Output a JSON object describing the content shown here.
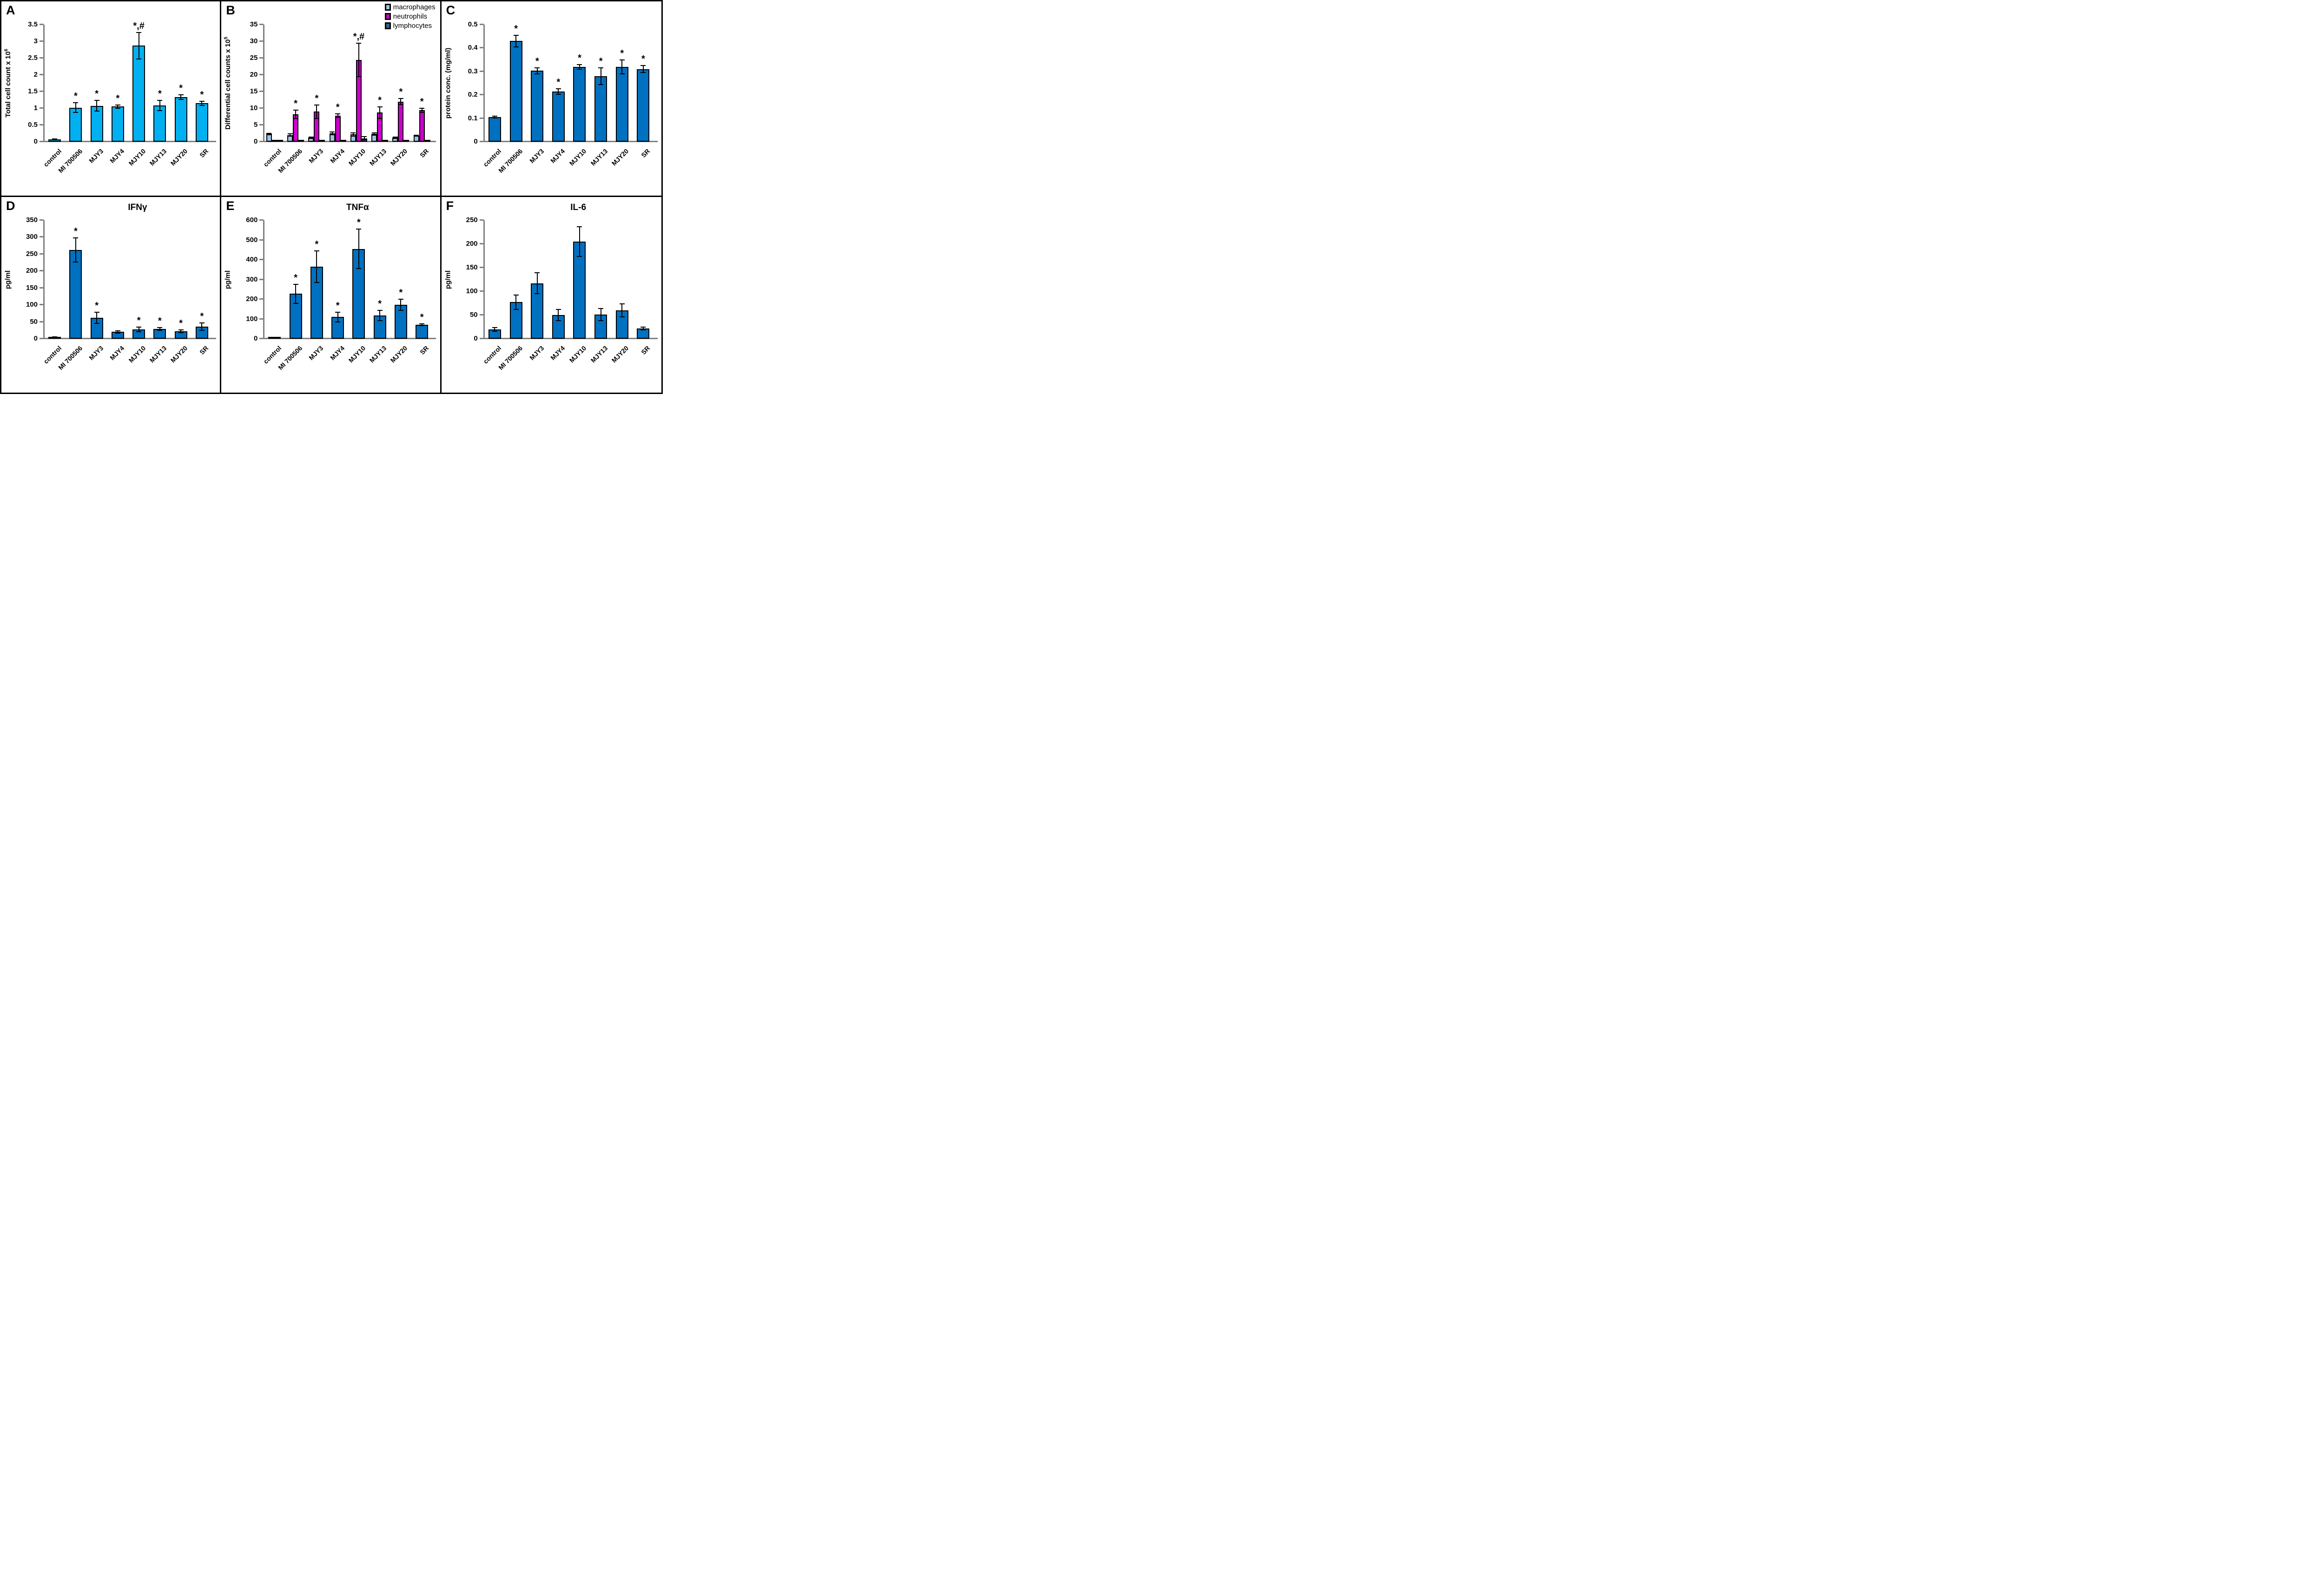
{
  "figure": {
    "background": "#FFFFFF",
    "border_color": "#000000",
    "axis_color": "#808080",
    "error_bar_color": "#000000"
  },
  "chart_data": [
    {
      "type": "bar",
      "panel_label": "A",
      "title": "",
      "ylabel": "Total cell count x 10",
      "ylabel_sup": "6",
      "ylim": [
        0,
        3.5
      ],
      "ytick_step": 0.5,
      "grid": false,
      "categories": [
        "control",
        "MI 700506",
        "MJY3",
        "MJY4",
        "MJY10",
        "MJY13",
        "MJY20",
        "SR"
      ],
      "series": [
        {
          "name": "total cells",
          "color": "#00B0F0",
          "values": [
            0.07,
            1.02,
            1.07,
            1.05,
            2.87,
            1.08,
            1.33,
            1.15
          ],
          "errors": [
            0.015,
            0.15,
            0.16,
            0.05,
            0.4,
            0.15,
            0.07,
            0.06
          ],
          "annotations": [
            "",
            "*",
            "*",
            "*",
            "*,#",
            "*",
            "*",
            "*"
          ]
        }
      ]
    },
    {
      "type": "bar",
      "panel_label": "B",
      "title": "",
      "ylabel": "Differential cell counts x 10",
      "ylabel_sup": "5",
      "ylim": [
        0,
        35
      ],
      "ytick_step": 5,
      "grid": false,
      "categories": [
        "control",
        "MI 700506",
        "MJY3",
        "MJY4",
        "MJY10",
        "MJY13",
        "MJY20",
        "SR"
      ],
      "legend": {
        "position": "top-right",
        "items": [
          {
            "label": "macrophages",
            "color": "#9DC3E6"
          },
          {
            "label": "neutrophils",
            "color": "#CC00CC"
          },
          {
            "label": "lymphocytes",
            "color": "#365F91"
          }
        ]
      },
      "series": [
        {
          "name": "macrophages",
          "color": "#9DC3E6",
          "values": [
            2.3,
            2.0,
            1.2,
            2.5,
            2.2,
            2.3,
            1.2,
            1.8
          ],
          "errors": [
            0.25,
            0.3,
            0.2,
            0.45,
            0.5,
            0.3,
            0.2,
            0.2
          ],
          "annotations": [
            "",
            "",
            "",
            "",
            "",
            "",
            "",
            ""
          ]
        },
        {
          "name": "neutrophils",
          "color": "#CC00CC",
          "values": [
            0.05,
            8.2,
            9.0,
            7.8,
            24.5,
            8.7,
            12.0,
            9.4
          ],
          "errors": [
            0,
            1.2,
            2.0,
            0.55,
            5.0,
            1.7,
            0.9,
            0.6
          ],
          "annotations": [
            "",
            "*",
            "*",
            "*",
            "*,#",
            "*",
            "*",
            "*"
          ]
        },
        {
          "name": "lymphocytes",
          "color": "#365F91",
          "values": [
            0.05,
            0.1,
            0.1,
            0.15,
            1.0,
            0.1,
            0.1,
            0.35
          ],
          "errors": [
            0,
            0,
            0,
            0,
            0.5,
            0,
            0,
            0.1
          ],
          "annotations": [
            "",
            "",
            "",
            "",
            "",
            "",
            "",
            ""
          ]
        }
      ]
    },
    {
      "type": "bar",
      "panel_label": "C",
      "title": "",
      "ylabel": "protein conc. (mg/ml)",
      "ylabel_sup": "",
      "ylim": [
        0,
        0.5
      ],
      "ytick_step": 0.1,
      "grid": false,
      "categories": [
        "control",
        "MI 700506",
        "MJY3",
        "MJY4",
        "MJY10",
        "MJY13",
        "MJY20",
        "SR"
      ],
      "series": [
        {
          "name": "protein",
          "color": "#0070C0",
          "values": [
            0.105,
            0.43,
            0.303,
            0.215,
            0.32,
            0.28,
            0.32,
            0.31
          ],
          "errors": [
            0.004,
            0.025,
            0.013,
            0.012,
            0.01,
            0.036,
            0.03,
            0.015
          ],
          "annotations": [
            "",
            "*",
            "*",
            "*",
            "*",
            "*",
            "*",
            "*"
          ]
        }
      ]
    },
    {
      "type": "bar",
      "panel_label": "D",
      "title": "IFNγ",
      "ylabel": "pg/ml",
      "ylabel_sup": "",
      "ylim": [
        0,
        350
      ],
      "ytick_step": 50,
      "grid": false,
      "categories": [
        "control",
        "MI 700506",
        "MJY3",
        "MJY4",
        "MJY10",
        "MJY13",
        "MJY20",
        "SR"
      ],
      "series": [
        {
          "name": "IFNγ",
          "color": "#0070C0",
          "values": [
            5,
            262,
            62,
            20,
            28,
            29,
            22,
            36
          ],
          "errors": [
            1,
            36,
            16,
            3,
            7,
            4,
            4,
            11
          ],
          "annotations": [
            "",
            "*",
            "*",
            "",
            "*",
            "*",
            "*",
            "*"
          ]
        }
      ]
    },
    {
      "type": "bar",
      "panel_label": "E",
      "title": "TNFα",
      "ylabel": "pg/ml",
      "ylabel_sup": "",
      "ylim": [
        0,
        600
      ],
      "ytick_step": 100,
      "grid": false,
      "categories": [
        "control",
        "MI 700506",
        "MJY3",
        "MJY4",
        "MJY10",
        "MJY13",
        "MJY20",
        "SR"
      ],
      "series": [
        {
          "name": "TNFα",
          "color": "#0070C0",
          "values": [
            4,
            228,
            365,
            110,
            455,
            118,
            172,
            70
          ],
          "errors": [
            1,
            48,
            80,
            25,
            100,
            26,
            28,
            5
          ],
          "annotations": [
            "",
            "*",
            "*",
            "*",
            "*",
            "*",
            "*",
            "*"
          ]
        }
      ]
    },
    {
      "type": "bar",
      "panel_label": "F",
      "title": "IL-6",
      "ylabel": "pg/ml",
      "ylabel_sup": "",
      "ylim": [
        0,
        250
      ],
      "ytick_step": 50,
      "grid": false,
      "categories": [
        "control",
        "MI 700506",
        "MJY3",
        "MJY4",
        "MJY10",
        "MJY13",
        "MJY20",
        "SR"
      ],
      "series": [
        {
          "name": "IL-6",
          "color": "#0070C0",
          "values": [
            20,
            77,
            117,
            50,
            205,
            51,
            60,
            22
          ],
          "errors": [
            4,
            15,
            22,
            12,
            31,
            13,
            14,
            3
          ],
          "annotations": [
            "",
            "",
            "",
            "",
            "",
            "",
            "",
            ""
          ]
        }
      ]
    }
  ]
}
